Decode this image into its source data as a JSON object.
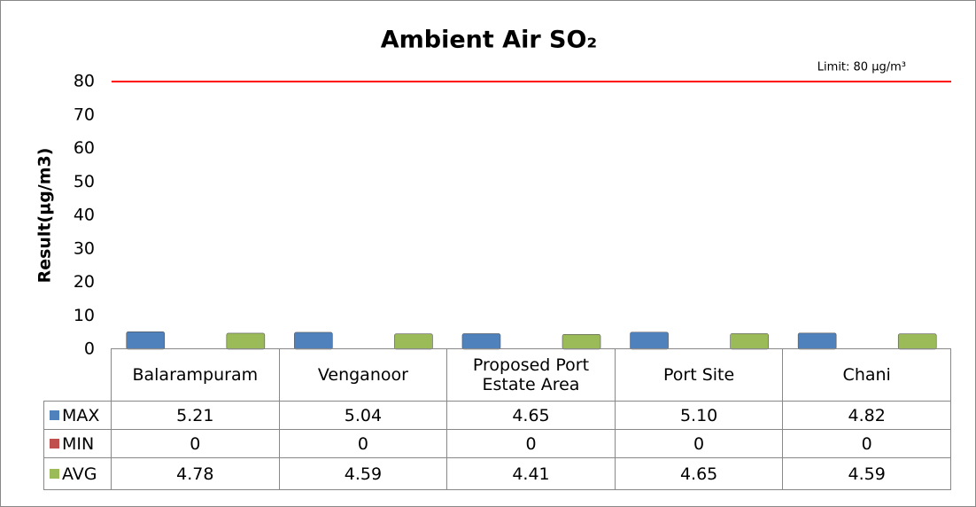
{
  "chart_data": {
    "type": "bar",
    "title": "Ambient Air SO₂",
    "y_label": "Result(µg/m3)",
    "limit": 80,
    "limit_label": "Limit: 80 µg/m³",
    "limit_color": "#ff0000",
    "categories": [
      "Balarampuram",
      "Venganoor",
      "Proposed Port Estate Area",
      "Port Site",
      "Chani"
    ],
    "series": [
      {
        "name": "MAX",
        "color": "#4f81bd",
        "values": [
          5.21,
          5.04,
          4.65,
          5.1,
          4.82
        ],
        "value_labels": [
          "5.21",
          "5.04",
          "4.65",
          "5.10",
          "4.82"
        ]
      },
      {
        "name": "MIN",
        "color": "#c0504d",
        "values": [
          0,
          0,
          0,
          0,
          0
        ],
        "value_labels": [
          "0",
          "0",
          "0",
          "0",
          "0"
        ]
      },
      {
        "name": "AVG",
        "color": "#9bbb59",
        "values": [
          4.78,
          4.59,
          4.41,
          4.65,
          4.59
        ],
        "value_labels": [
          "4.78",
          "4.59",
          "4.41",
          "4.65",
          "4.59"
        ]
      }
    ],
    "ylim": [
      0,
      80
    ],
    "yticks": [
      0,
      10,
      20,
      30,
      40,
      50,
      60,
      70,
      80
    ],
    "grid": false
  }
}
